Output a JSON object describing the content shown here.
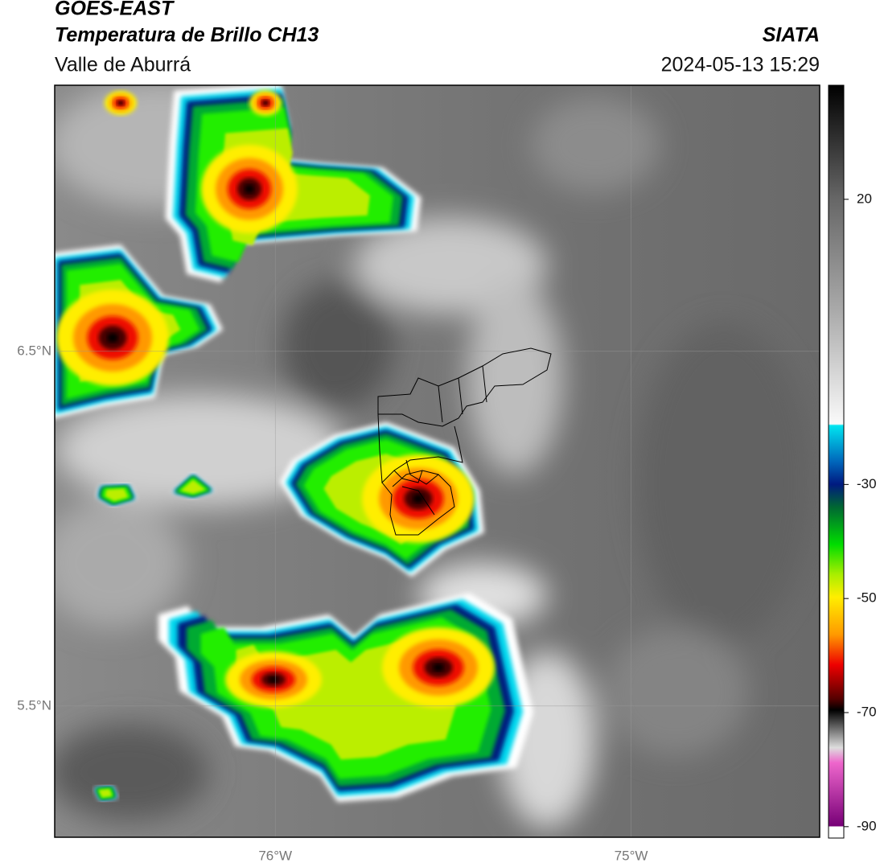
{
  "header": {
    "title": "GOES-EAST",
    "subtitle": "Temperatura de Brillo CH13",
    "location": "Valle de Aburrá",
    "source": "SIATA",
    "timestamp": "2024-05-13 15:29"
  },
  "map": {
    "lon_range": [
      -76.62,
      -74.47
    ],
    "lat_range": [
      5.13,
      7.25
    ],
    "lat_ticks": [
      {
        "value": 6.5,
        "label": "6.5°N"
      },
      {
        "value": 5.5,
        "label": "5.5°N"
      }
    ],
    "lon_ticks": [
      {
        "value": -76,
        "label": "76°W"
      },
      {
        "value": -75,
        "label": "75°W"
      }
    ]
  },
  "colorbar": {
    "range": [
      -92,
      40
    ],
    "ticks": [
      20,
      -30,
      -50,
      -70,
      -90
    ]
  }
}
